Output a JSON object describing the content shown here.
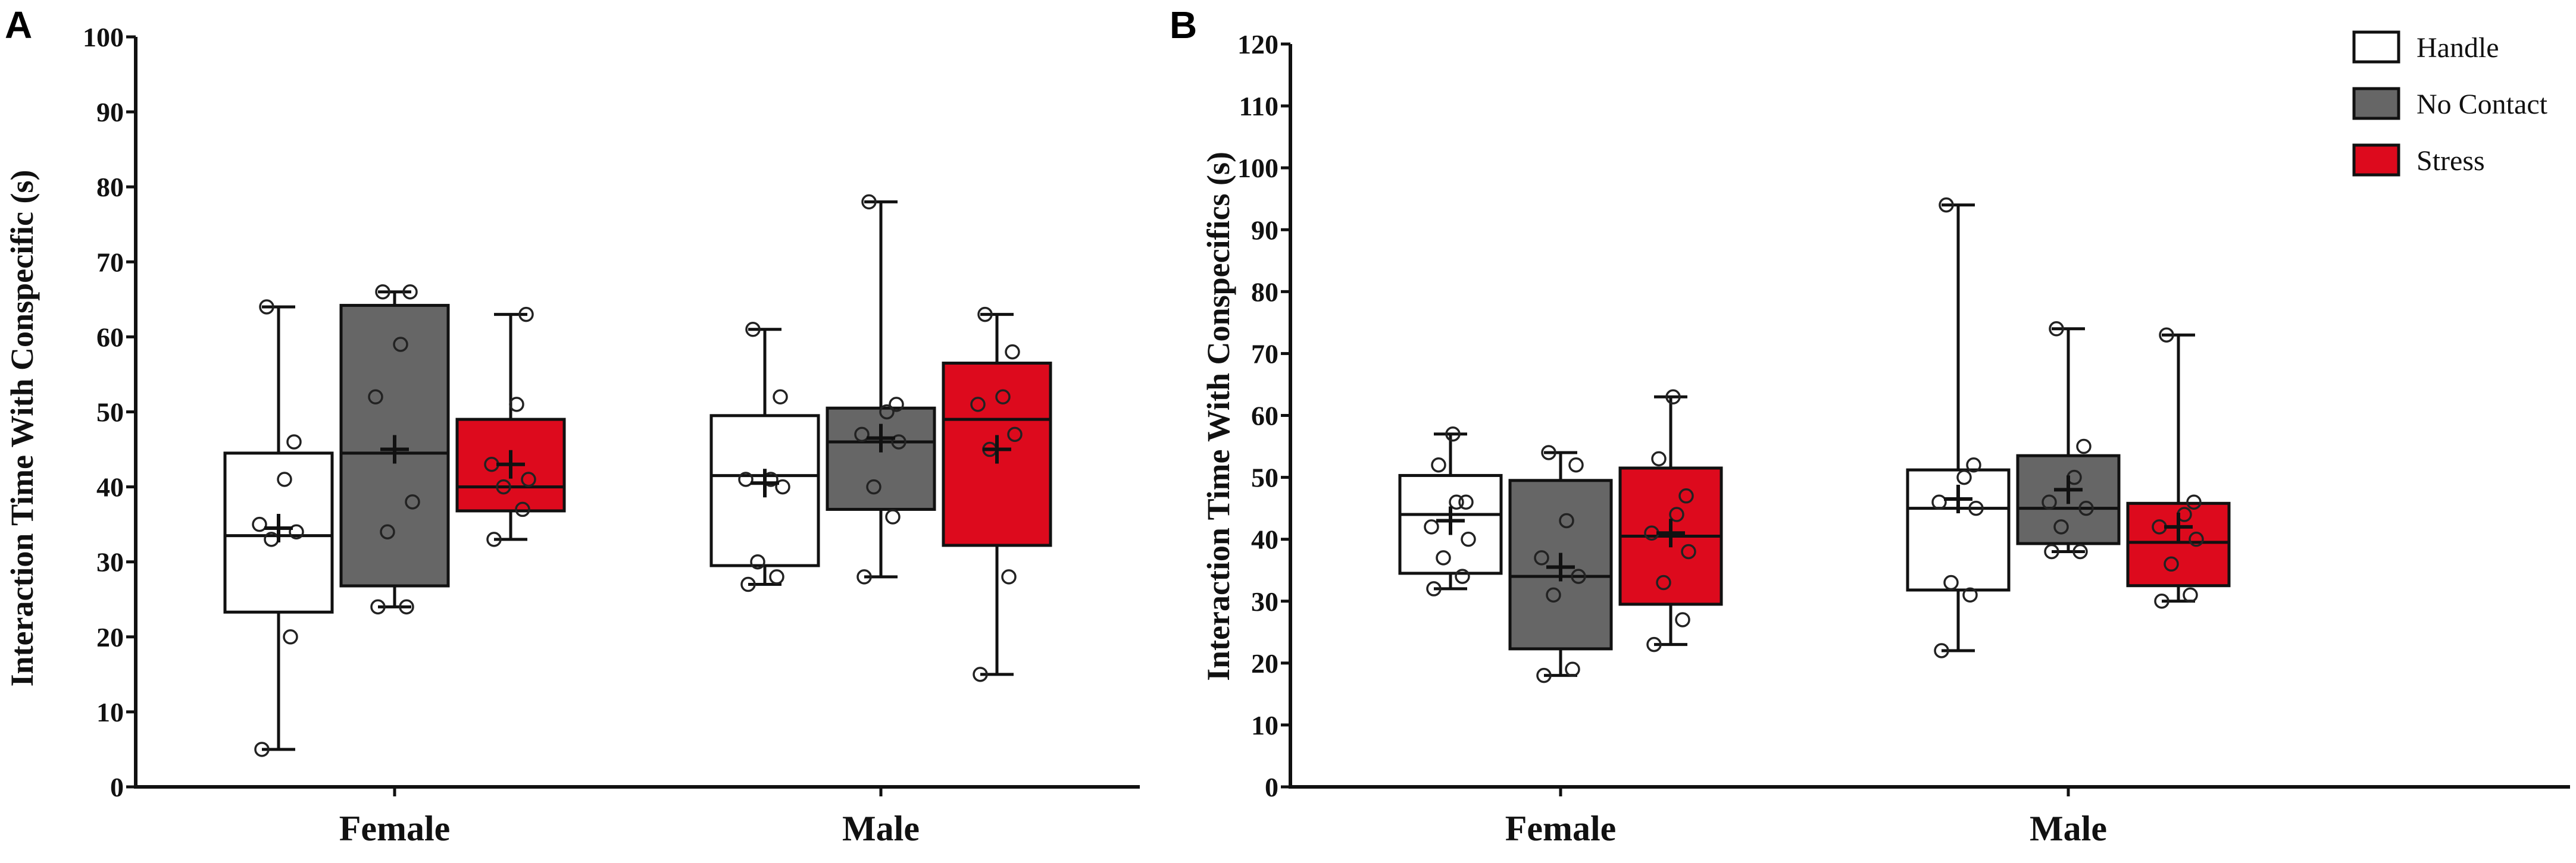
{
  "figure": {
    "legend": [
      {
        "name": "Handle",
        "color": "#ffffff"
      },
      {
        "name": "No Contact",
        "color": "#666666"
      },
      {
        "name": "Stress",
        "color": "#dd0a1d"
      }
    ],
    "point_color": "#222222"
  },
  "chart_data": [
    {
      "panel": "A",
      "type": "box",
      "ylabel": "Interaction Time With Conspecific (s)",
      "xlabel": "",
      "ylim": [
        0,
        100
      ],
      "ytick_step": 10,
      "categories": [
        "Female",
        "Male"
      ],
      "groups": [
        {
          "category": "Female",
          "series": "Handle",
          "min": 5,
          "q1": 23.3,
          "median": 33.5,
          "q3": 44.5,
          "max": 64,
          "mean": 34.5,
          "points": [
            5,
            20,
            33,
            34,
            35,
            41,
            46,
            64
          ]
        },
        {
          "category": "Female",
          "series": "No Contact",
          "min": 24,
          "q1": 26.8,
          "median": 44.5,
          "q3": 64.2,
          "max": 66,
          "mean": 45,
          "points": [
            24,
            24,
            34,
            38,
            52,
            59,
            66,
            66
          ]
        },
        {
          "category": "Female",
          "series": "Stress",
          "min": 33,
          "q1": 36.8,
          "median": 40,
          "q3": 49,
          "max": 63,
          "mean": 43,
          "points": [
            33,
            37,
            40,
            41,
            43,
            51,
            63
          ]
        },
        {
          "category": "Male",
          "series": "Handle",
          "min": 27,
          "q1": 29.5,
          "median": 41.5,
          "q3": 49.5,
          "max": 61,
          "mean": 40.5,
          "points": [
            27,
            28,
            30,
            40,
            41,
            41,
            52,
            61
          ]
        },
        {
          "category": "Male",
          "series": "No Contact",
          "min": 28,
          "q1": 37,
          "median": 46,
          "q3": 50.5,
          "max": 78,
          "mean": 46.5,
          "points": [
            28,
            36,
            40,
            46,
            47,
            50,
            51,
            78
          ]
        },
        {
          "category": "Male",
          "series": "Stress",
          "min": 15,
          "q1": 32.2,
          "median": 49,
          "q3": 56.5,
          "max": 63,
          "mean": 45,
          "points": [
            15,
            28,
            45,
            47,
            51,
            52,
            58,
            63
          ]
        }
      ]
    },
    {
      "panel": "B",
      "type": "box",
      "ylabel": "Interaction Time With Conspecifics (s)",
      "xlabel": "",
      "ylim": [
        0,
        120
      ],
      "ytick_step": 10,
      "categories": [
        "Female",
        "Male"
      ],
      "groups": [
        {
          "category": "Female",
          "series": "Handle",
          "min": 32,
          "q1": 34.5,
          "median": 44,
          "q3": 50.3,
          "max": 57,
          "mean": 43,
          "points": [
            32,
            34,
            37,
            40,
            42,
            46,
            46,
            52,
            57
          ]
        },
        {
          "category": "Female",
          "series": "No Contact",
          "min": 18,
          "q1": 22.3,
          "median": 34,
          "q3": 49.5,
          "max": 54,
          "mean": 35.5,
          "points": [
            18,
            19,
            31,
            34,
            37,
            43,
            52,
            54
          ]
        },
        {
          "category": "Female",
          "series": "Stress",
          "min": 23,
          "q1": 29.5,
          "median": 40.5,
          "q3": 51.5,
          "max": 63,
          "mean": 41,
          "points": [
            23,
            27,
            33,
            38,
            41,
            44,
            47,
            53,
            63
          ]
        },
        {
          "category": "Male",
          "series": "Handle",
          "min": 22,
          "q1": 31.8,
          "median": 45,
          "q3": 51.2,
          "max": 94,
          "mean": 46.5,
          "points": [
            22,
            31,
            33,
            45,
            46,
            50,
            52,
            94
          ]
        },
        {
          "category": "Male",
          "series": "No Contact",
          "min": 38,
          "q1": 39.3,
          "median": 45,
          "q3": 53.5,
          "max": 74,
          "mean": 48,
          "points": [
            38,
            38,
            42,
            45,
            46,
            50,
            55,
            74
          ]
        },
        {
          "category": "Male",
          "series": "Stress",
          "min": 30,
          "q1": 32.5,
          "median": 39.5,
          "q3": 45.8,
          "max": 73,
          "mean": 42,
          "points": [
            30,
            31,
            36,
            40,
            42,
            44,
            46,
            73
          ]
        }
      ]
    }
  ]
}
